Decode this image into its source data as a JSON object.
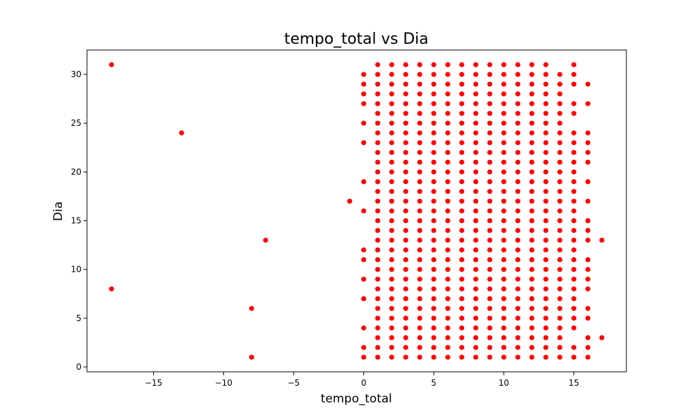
{
  "chart_data": {
    "type": "scatter",
    "title": "tempo_total vs Dia",
    "xlabel": "tempo_total",
    "ylabel": "Dia",
    "xlim": [
      -19.75,
      18.75
    ],
    "ylim": [
      -0.5,
      32.5
    ],
    "xticks": [
      -15,
      -10,
      -5,
      0,
      5,
      10,
      15
    ],
    "yticks": [
      0,
      5,
      10,
      15,
      20,
      25,
      30
    ],
    "grid": false,
    "marker_color": "#ff0000",
    "points": [
      [
        -18,
        31
      ],
      [
        -18,
        8
      ],
      [
        -13,
        24
      ],
      [
        -8,
        6
      ],
      [
        -8,
        1
      ],
      [
        -7,
        13
      ],
      [
        -1,
        17
      ],
      [
        0,
        30
      ],
      [
        0,
        29
      ],
      [
        0,
        28
      ],
      [
        0,
        27
      ],
      [
        0,
        25
      ],
      [
        0,
        23
      ],
      [
        0,
        19
      ],
      [
        0,
        16
      ],
      [
        0,
        12
      ],
      [
        0,
        11
      ],
      [
        0,
        9
      ],
      [
        0,
        7
      ],
      [
        0,
        4
      ],
      [
        0,
        2
      ],
      [
        0,
        1
      ],
      [
        1,
        "1-31"
      ],
      [
        2,
        "1-31"
      ],
      [
        3,
        "1-31"
      ],
      [
        4,
        "1-31"
      ],
      [
        5,
        "1-31"
      ],
      [
        6,
        "1-31"
      ],
      [
        7,
        "1-31"
      ],
      [
        8,
        "1-31"
      ],
      [
        9,
        "1-31"
      ],
      [
        10,
        "1-31"
      ],
      [
        11,
        "1-31"
      ],
      [
        12,
        "1-31"
      ],
      [
        13,
        "1-31"
      ],
      [
        14,
        30
      ],
      [
        14,
        29
      ],
      [
        14,
        28
      ],
      [
        14,
        27
      ],
      [
        14,
        26
      ],
      [
        14,
        25
      ],
      [
        14,
        24
      ],
      [
        14,
        23
      ],
      [
        14,
        22
      ],
      [
        14,
        21
      ],
      [
        14,
        20
      ],
      [
        14,
        19
      ],
      [
        14,
        18
      ],
      [
        14,
        17
      ],
      [
        14,
        16
      ],
      [
        14,
        15
      ],
      [
        14,
        14
      ],
      [
        14,
        13
      ],
      [
        14,
        12
      ],
      [
        14,
        11
      ],
      [
        14,
        10
      ],
      [
        14,
        9
      ],
      [
        14,
        8
      ],
      [
        14,
        7
      ],
      [
        14,
        6
      ],
      [
        14,
        5
      ],
      [
        14,
        4
      ],
      [
        14,
        3
      ],
      [
        14,
        2
      ],
      [
        14,
        1
      ],
      [
        15,
        31
      ],
      [
        15,
        30
      ],
      [
        15,
        29
      ],
      [
        15,
        27
      ],
      [
        15,
        26
      ],
      [
        15,
        24
      ],
      [
        15,
        23
      ],
      [
        15,
        22
      ],
      [
        15,
        21
      ],
      [
        15,
        20
      ],
      [
        15,
        19
      ],
      [
        15,
        18
      ],
      [
        15,
        17
      ],
      [
        15,
        16
      ],
      [
        15,
        15
      ],
      [
        15,
        14
      ],
      [
        15,
        13
      ],
      [
        15,
        12
      ],
      [
        15,
        11
      ],
      [
        15,
        10
      ],
      [
        15,
        9
      ],
      [
        15,
        8
      ],
      [
        15,
        7
      ],
      [
        15,
        6
      ],
      [
        15,
        5
      ],
      [
        15,
        4
      ],
      [
        15,
        2
      ],
      [
        15,
        1
      ],
      [
        16,
        29
      ],
      [
        16,
        27
      ],
      [
        16,
        24
      ],
      [
        16,
        23
      ],
      [
        16,
        22
      ],
      [
        16,
        21
      ],
      [
        16,
        19
      ],
      [
        16,
        17
      ],
      [
        16,
        15
      ],
      [
        16,
        14
      ],
      [
        16,
        13
      ],
      [
        16,
        11
      ],
      [
        16,
        10
      ],
      [
        16,
        9
      ],
      [
        16,
        8
      ],
      [
        16,
        6
      ],
      [
        16,
        5
      ],
      [
        16,
        3
      ],
      [
        16,
        2
      ],
      [
        16,
        1
      ],
      [
        17,
        13
      ],
      [
        17,
        3
      ]
    ]
  }
}
